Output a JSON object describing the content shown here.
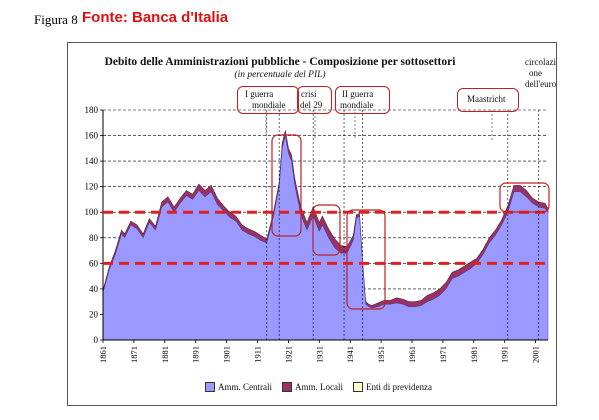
{
  "header": {
    "figure_label": "Figura 8",
    "source": "Fonte: Banca d'Italia"
  },
  "annotations": {
    "ww1": [
      "I guerra",
      "mondiale"
    ],
    "crisis": [
      "crisi",
      "del 29"
    ],
    "ww2": [
      "II guerra",
      "mondiale"
    ],
    "maastricht": "Maastricht",
    "euro": [
      "circolazi",
      "one",
      "dell'euro"
    ]
  },
  "colors": {
    "central": "#9999ff",
    "local": "#993366",
    "pension": "#ffffcc",
    "threshold_lines": "#e02020",
    "annotation_box": "#c02020"
  },
  "chart_data": {
    "type": "area",
    "title": "Debito delle Amministrazioni pubbliche - Composizione per sottosettori",
    "subtitle": "(in percentuale del PIL)",
    "xlabel": "",
    "ylabel": "",
    "ylim": [
      0,
      180
    ],
    "yticks": [
      "0",
      "20",
      "40",
      "60",
      "80",
      "100",
      "120",
      "140",
      "160",
      "180"
    ],
    "xlim": [
      1861,
      2005
    ],
    "xticks": [
      "1861",
      "1871",
      "1881",
      "1891",
      "1901",
      "1911",
      "1921",
      "1931",
      "1941",
      "1951",
      "1961",
      "1971",
      "1981",
      "1991",
      "2001"
    ],
    "grid": "horizontal dashed",
    "legend_placement": "bottom",
    "reference_lines": [
      100,
      60
    ],
    "event_lines": [
      1914,
      1918,
      1929,
      1939,
      1945,
      1992,
      2002
    ],
    "x": [
      1861,
      1863,
      1865,
      1867,
      1868,
      1870,
      1872,
      1874,
      1876,
      1878,
      1880,
      1882,
      1884,
      1886,
      1888,
      1890,
      1892,
      1894,
      1896,
      1898,
      1900,
      1902,
      1904,
      1906,
      1908,
      1910,
      1912,
      1914,
      1916,
      1918,
      1919,
      1920,
      1921,
      1922,
      1923,
      1925,
      1927,
      1929,
      1931,
      1932,
      1934,
      1936,
      1938,
      1940,
      1942,
      1943,
      1944,
      1945,
      1946,
      1947,
      1948,
      1950,
      1952,
      1954,
      1956,
      1958,
      1960,
      1962,
      1964,
      1966,
      1968,
      1970,
      1972,
      1974,
      1976,
      1978,
      1980,
      1982,
      1984,
      1986,
      1988,
      1990,
      1992,
      1994,
      1996,
      1998,
      2000,
      2002,
      2004,
      2005
    ],
    "series": [
      {
        "name": "Amm. Centrali",
        "values": [
          37,
          55,
          67,
          83,
          80,
          90,
          87,
          80,
          92,
          86,
          104,
          108,
          100,
          107,
          113,
          110,
          117,
          112,
          116,
          106,
          101,
          96,
          93,
          86,
          83,
          81,
          78,
          76,
          95,
          120,
          150,
          160,
          146,
          140,
          122,
          98,
          86,
          97,
          85,
          90,
          80,
          72,
          68,
          68,
          78,
          95,
          97,
          60,
          28,
          26,
          25,
          26,
          28,
          28,
          29,
          28,
          26,
          26,
          27,
          30,
          32,
          35,
          40,
          48,
          50,
          53,
          56,
          60,
          67,
          76,
          82,
          90,
          100,
          116,
          116,
          112,
          107,
          104,
          103,
          100
        ]
      },
      {
        "name": "Amm. Locali",
        "values": [
          2,
          2,
          3,
          3,
          3,
          3,
          3,
          3,
          3,
          3,
          4,
          4,
          4,
          4,
          4,
          4,
          5,
          5,
          5,
          5,
          4,
          4,
          4,
          4,
          4,
          4,
          4,
          3,
          3,
          3,
          4,
          4,
          4,
          5,
          5,
          6,
          6,
          7,
          7,
          7,
          7,
          7,
          6,
          5,
          4,
          3,
          2,
          2,
          2,
          2,
          2,
          3,
          3,
          3,
          4,
          4,
          4,
          4,
          4,
          5,
          5,
          5,
          5,
          5,
          5,
          5,
          5,
          4,
          4,
          4,
          4,
          4,
          5,
          5,
          5,
          5,
          4,
          4,
          4,
          3
        ]
      },
      {
        "name": "Enti di previdenza",
        "values": [
          0,
          0,
          0,
          0,
          0,
          0,
          0,
          0,
          0,
          0,
          0,
          0,
          0,
          0,
          0,
          0,
          0,
          0,
          0,
          0,
          0,
          0,
          0,
          0,
          0,
          0,
          0,
          0,
          0,
          0,
          0,
          0,
          0,
          0,
          0,
          0,
          0,
          0,
          0,
          0,
          0,
          0,
          0,
          0,
          0,
          0,
          0,
          0,
          0,
          0,
          0,
          0,
          0,
          0,
          0,
          0,
          0,
          0,
          0,
          0,
          0,
          0,
          0,
          0,
          0,
          0,
          0,
          0,
          0,
          0,
          0,
          0,
          0,
          0,
          0,
          0,
          0,
          0,
          0,
          0
        ]
      }
    ]
  }
}
